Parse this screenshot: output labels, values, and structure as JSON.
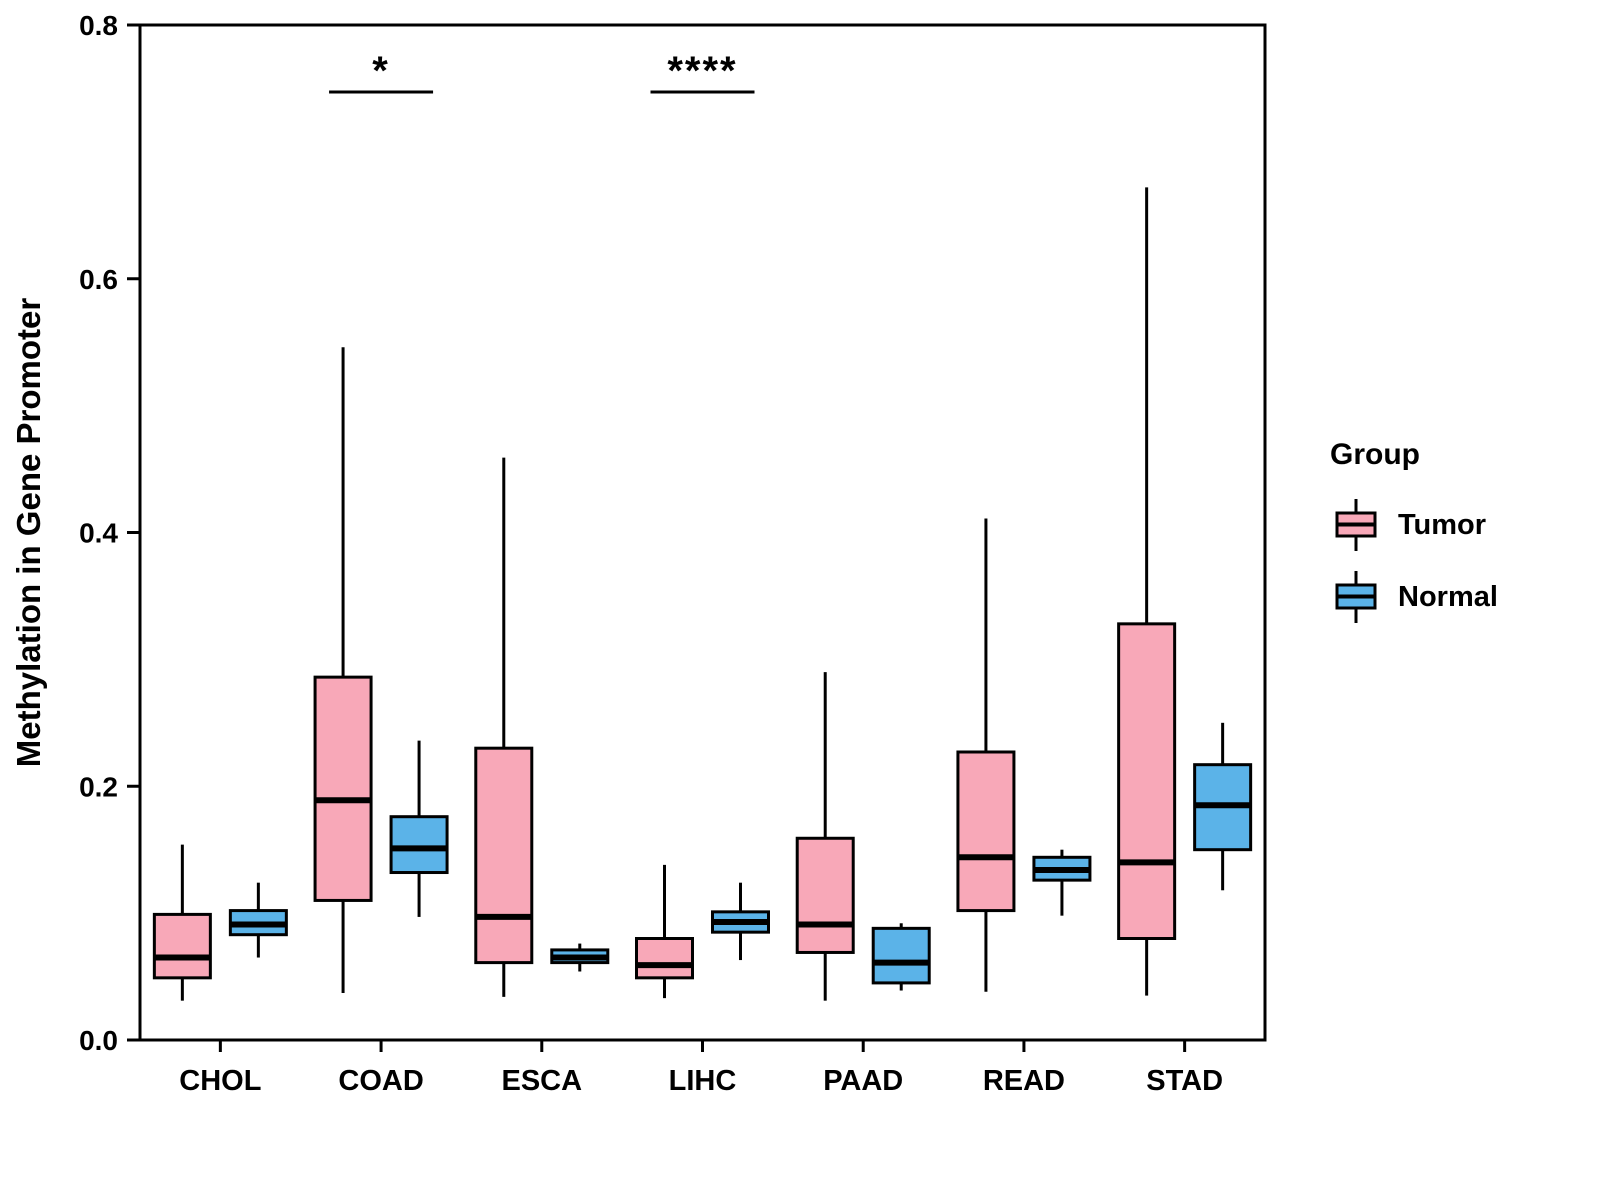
{
  "chart_data": {
    "type": "boxplot",
    "title": "",
    "xlabel": "",
    "ylabel": "Methylation in Gene Promoter",
    "ylim": [
      0.0,
      0.8
    ],
    "yticks": [
      0.0,
      0.2,
      0.4,
      0.6,
      0.8
    ],
    "grid": false,
    "categories": [
      "CHOL",
      "COAD",
      "ESCA",
      "LIHC",
      "PAAD",
      "READ",
      "STAD"
    ],
    "series": [
      {
        "name": "Tumor",
        "color": "#F8A8B8",
        "boxes": [
          {
            "whisker_low": 0.031,
            "q1": 0.049,
            "median": 0.065,
            "q3": 0.099,
            "whisker_high": 0.154
          },
          {
            "whisker_low": 0.037,
            "q1": 0.11,
            "median": 0.189,
            "q3": 0.286,
            "whisker_high": 0.546
          },
          {
            "whisker_low": 0.034,
            "q1": 0.061,
            "median": 0.097,
            "q3": 0.23,
            "whisker_high": 0.459
          },
          {
            "whisker_low": 0.033,
            "q1": 0.049,
            "median": 0.059,
            "q3": 0.08,
            "whisker_high": 0.138
          },
          {
            "whisker_low": 0.031,
            "q1": 0.069,
            "median": 0.091,
            "q3": 0.159,
            "whisker_high": 0.29
          },
          {
            "whisker_low": 0.038,
            "q1": 0.102,
            "median": 0.144,
            "q3": 0.227,
            "whisker_high": 0.411
          },
          {
            "whisker_low": 0.035,
            "q1": 0.08,
            "median": 0.14,
            "q3": 0.328,
            "whisker_high": 0.672
          }
        ]
      },
      {
        "name": "Normal",
        "color": "#5BB3E8",
        "boxes": [
          {
            "whisker_low": 0.065,
            "q1": 0.083,
            "median": 0.091,
            "q3": 0.102,
            "whisker_high": 0.124
          },
          {
            "whisker_low": 0.097,
            "q1": 0.132,
            "median": 0.151,
            "q3": 0.176,
            "whisker_high": 0.236
          },
          {
            "whisker_low": 0.054,
            "q1": 0.061,
            "median": 0.065,
            "q3": 0.071,
            "whisker_high": 0.076
          },
          {
            "whisker_low": 0.063,
            "q1": 0.085,
            "median": 0.093,
            "q3": 0.101,
            "whisker_high": 0.124
          },
          {
            "whisker_low": 0.039,
            "q1": 0.045,
            "median": 0.061,
            "q3": 0.088,
            "whisker_high": 0.092
          },
          {
            "whisker_low": 0.098,
            "q1": 0.126,
            "median": 0.134,
            "q3": 0.144,
            "whisker_high": 0.15
          },
          {
            "whisker_low": 0.118,
            "q1": 0.15,
            "median": 0.185,
            "q3": 0.217,
            "whisker_high": 0.25
          }
        ]
      }
    ],
    "annotations": [
      {
        "category": "COAD",
        "label": "*"
      },
      {
        "category": "LIHC",
        "label": "****"
      }
    ],
    "legend": {
      "title": "Group",
      "position": "right",
      "entries": [
        "Tumor",
        "Normal"
      ]
    }
  }
}
